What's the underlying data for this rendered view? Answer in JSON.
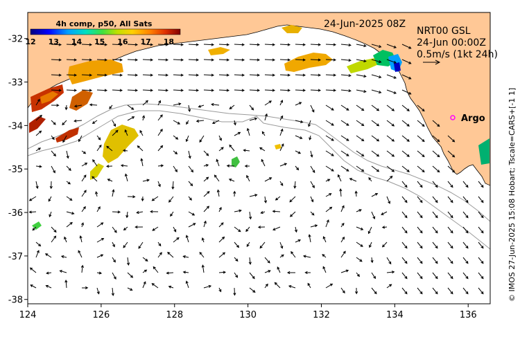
{
  "map": {
    "date_label": "24-Jun-2025 08Z",
    "product_lines": [
      "NRT00 GSL",
      "24-Jun 00:00Z",
      "0.5m/s (1kt 24h)"
    ],
    "credit": "© IMOS 27-Jun-2025 15:08 Hobart; Tscale=CARS+[-1 1]",
    "argo_label": "Argo",
    "colorbar": {
      "title": "4h comp, p50, All Sats",
      "ticks": [
        "12",
        "13",
        "14",
        "15",
        "16",
        "17",
        "18"
      ],
      "min": 12,
      "max": 18.5
    },
    "x_ticks": [
      "124",
      "126",
      "128",
      "130",
      "132",
      "134",
      "136"
    ],
    "y_ticks": [
      "-32",
      "-33",
      "-34",
      "-35",
      "-36",
      "-37",
      "-38"
    ],
    "lon_range": [
      124,
      136.6
    ],
    "lat_range": [
      -31.4,
      -38.1
    ],
    "colors": {
      "land": "#ffc896",
      "ocean": "#ffffff",
      "isobath": "#9a9a9a",
      "argo_marker": "#ff00ff"
    }
  }
}
